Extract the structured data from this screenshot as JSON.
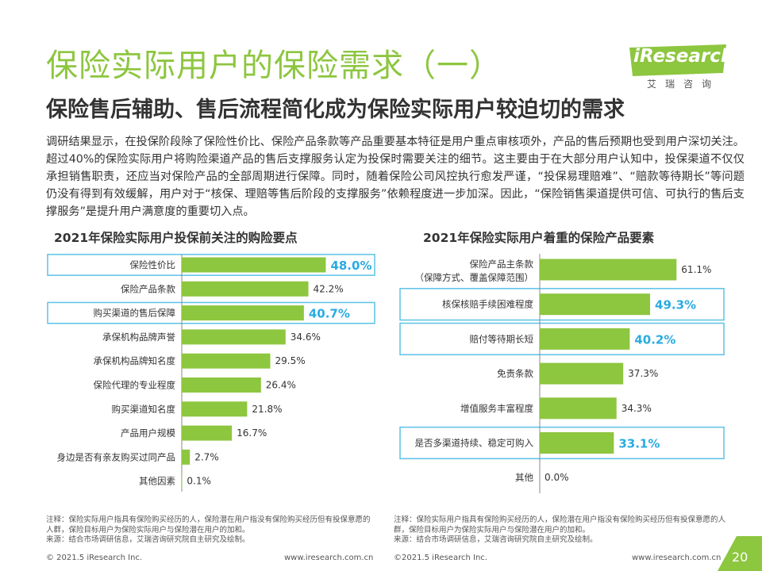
{
  "title": "保险实际用户的保险需求（一）",
  "subtitle": "保险售后辅助、售后流程简化成为保险实际用户较迫切的需求",
  "logo": {
    "brand": "iResearch",
    "cn": "艾瑞咨询"
  },
  "body_text": "调研结果显示，在投保阶段除了保险性价比、保险产品条款等产品重要基本特征是用户重点审核项外，产品的售后预期也受到用户深切关注。超过40%的保险实际用户将购险渠道产品的售后支撑服务认定为投保时需要关注的细节。这主要由于在大部分用户认知中，投保渠道不仅仅承担销售职责，还应当对保险产品的全部周期进行保障。同时，随着保险公司风控执行愈发严谨，“投保易理赔难”、“赔款等待期长”等问题仍没有得到有效缓解，用户对于“核保、理赔等售后阶段的支撑服务”依赖程度进一步加深。因此，“保险销售渠道提供可信、可执行的售后支撑服务”是提升用户满意度的重要切入点。",
  "colors": {
    "accent": "#8dc63f",
    "highlight_text": "#29abe2",
    "highlight_box": "#5bc2e7",
    "axis": "#888888"
  },
  "chart_data": [
    {
      "type": "bar",
      "orientation": "horizontal",
      "title": "2021年保险实际用户投保前关注的购险要点",
      "categories": [
        "保险性价比",
        "保险产品条款",
        "购买渠道的售后保障",
        "承保机构品牌声誉",
        "承保机构品牌知名度",
        "保险代理的专业程度",
        "购买渠道知名度",
        "产品用户规模",
        "身边是否有亲友购买过同产品",
        "其他因素"
      ],
      "values": [
        48.0,
        42.2,
        40.7,
        34.6,
        29.5,
        26.4,
        21.8,
        16.7,
        2.7,
        0.1
      ],
      "labels": [
        "48.0%",
        "42.2%",
        "40.7%",
        "34.6%",
        "29.5%",
        "26.4%",
        "21.8%",
        "16.7%",
        "2.7%",
        "0.1%"
      ],
      "highlighted": [
        0,
        2
      ],
      "unit": "%"
    },
    {
      "type": "bar",
      "orientation": "horizontal",
      "title": "2021年保险实际用户着重的保险产品要素",
      "categories": [
        "保险产品主条款",
        "核保核赔手续困难程度",
        "赔付等待期长短",
        "免责条款",
        "增值服务丰富程度",
        "是否多渠道持续、稳定可购入",
        "其他"
      ],
      "category_sublabels": [
        "（保障方式、覆盖保障范围）",
        "",
        "",
        "",
        "",
        "",
        ""
      ],
      "values": [
        61.1,
        49.3,
        40.2,
        37.3,
        34.3,
        33.1,
        0.0
      ],
      "labels": [
        "61.1%",
        "49.3%",
        "40.2%",
        "37.3%",
        "34.3%",
        "33.1%",
        "0.0%"
      ],
      "highlighted": [
        1,
        2,
        5
      ],
      "unit": "%"
    }
  ],
  "notes": {
    "left": [
      "注释：保险实际用户指具有保险购买经历的人，保险潜在用户指没有保险购买经历但有投保意愿的人群，保险目标用户为保险实际用户与保险潜在用户的加和。",
      "来源：结合市场调研信息，艾瑞咨询研究院自主研究及绘制。"
    ],
    "right": [
      "注释：保险实际用户指具有保险购买经历的人，保险潜在用户指没有保险购买经历但有投保意愿的人群，保险目标用户为保险实际用户与保险潜在用户的加和。",
      "来源：结合市场调研信息，艾瑞咨询研究院自主研究及绘制。"
    ]
  },
  "footer": {
    "left_copyright": "© 2021.5 iResearch Inc.",
    "left_url": "www.iresearch.com.cn",
    "right_copyright": "©2021.5 iResearch Inc.",
    "right_url": "www.iresearch.com.cn",
    "page": "20"
  }
}
